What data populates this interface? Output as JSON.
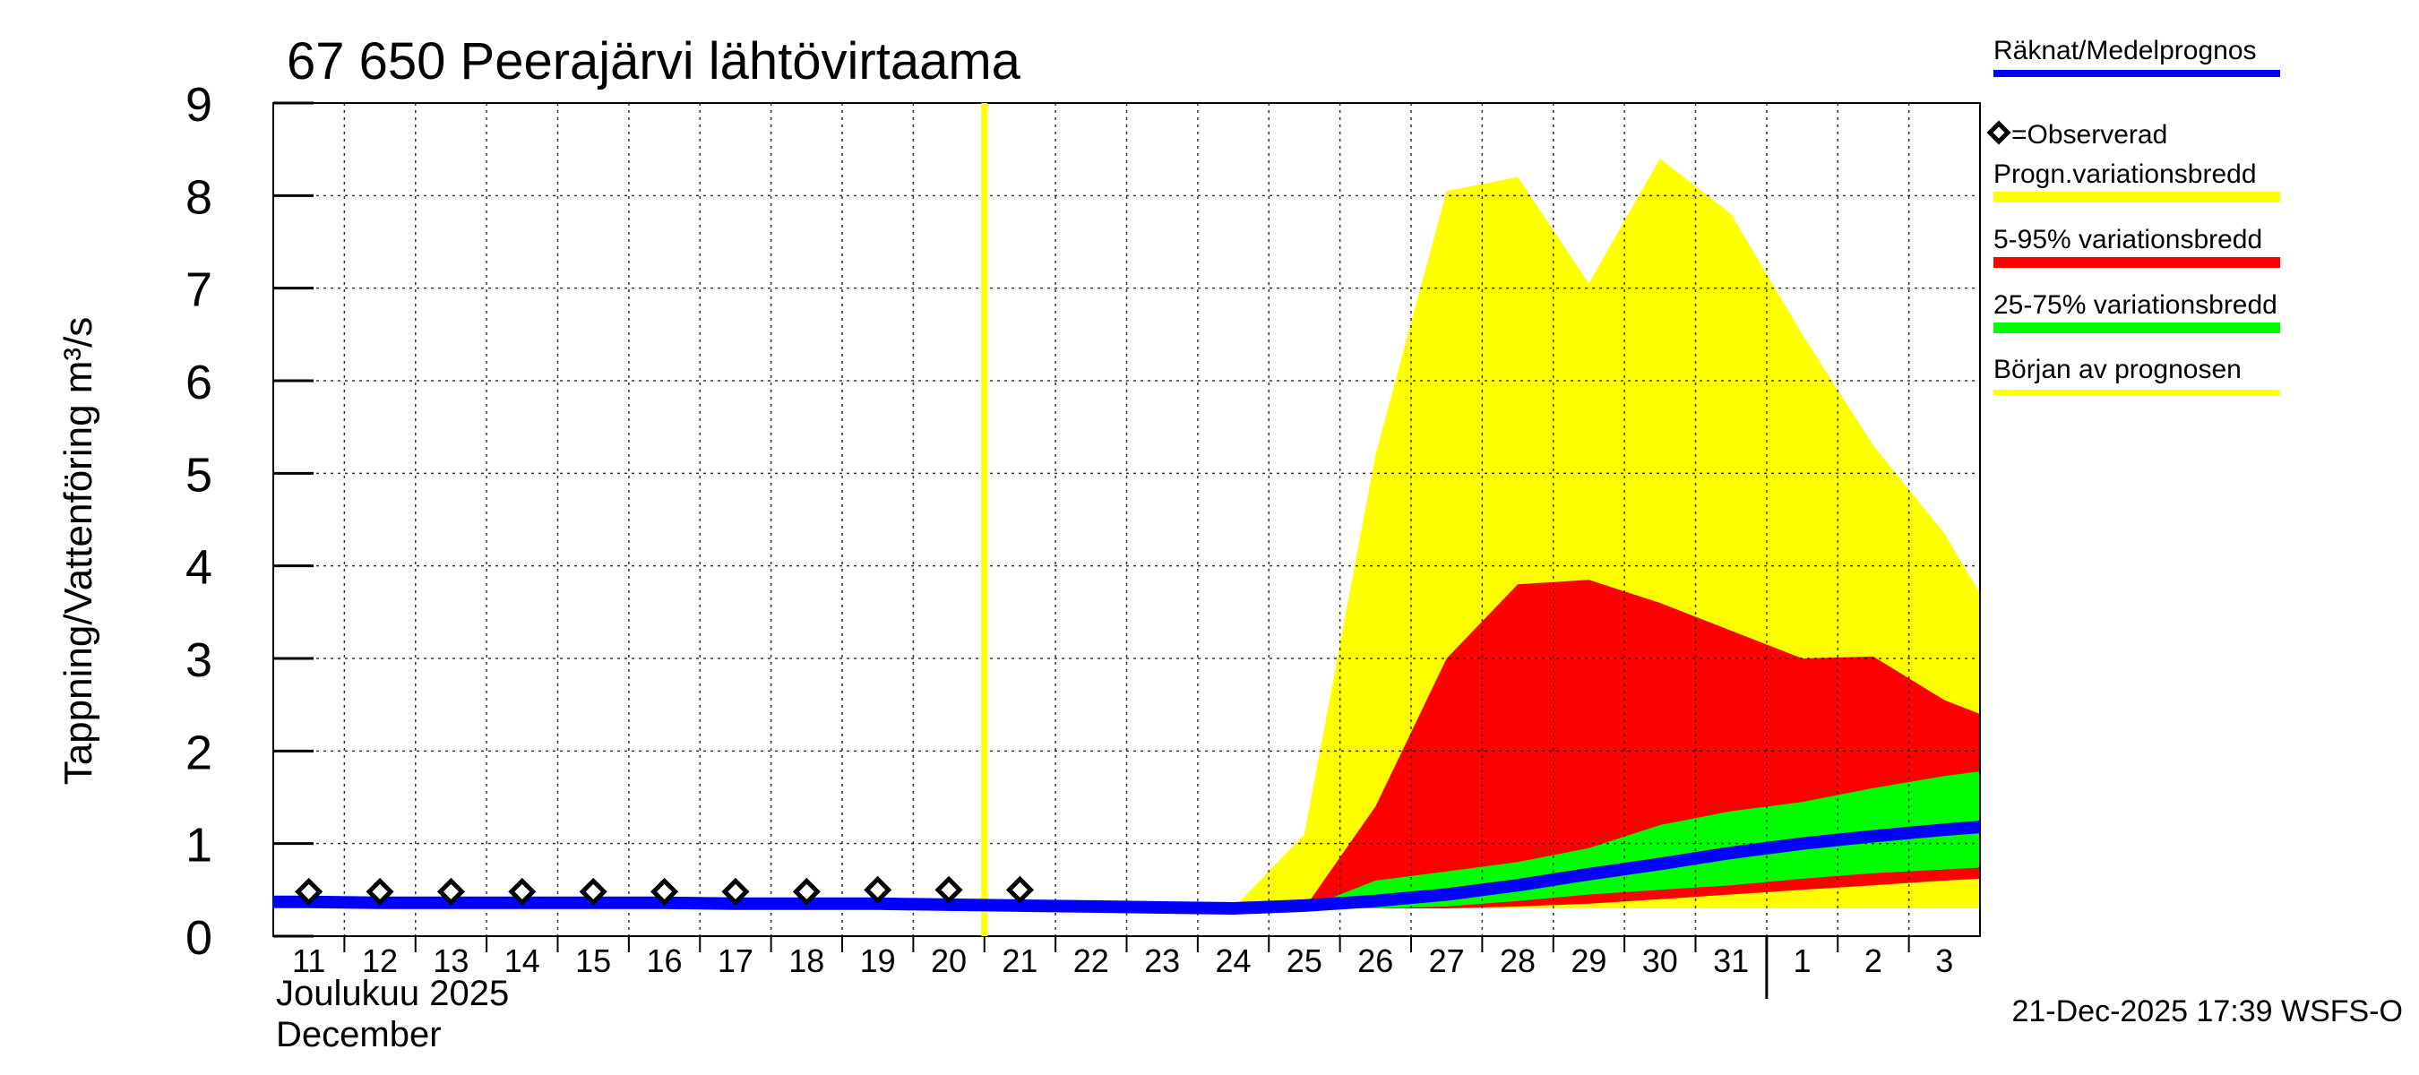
{
  "chart_data": {
    "type": "area",
    "title": "67 650 Peerajärvi lähtövirtaama",
    "ylabel": "Tappning/Vattenföring m³/s",
    "xlabel_line1": "Joulukuu  2025",
    "xlabel_line2": "December",
    "ylim": [
      0,
      9
    ],
    "yticks": [
      "0",
      "1",
      "2",
      "3",
      "4",
      "5",
      "6",
      "7",
      "8",
      "9"
    ],
    "xticks": [
      {
        "label": "11",
        "day": 11
      },
      {
        "label": "12",
        "day": 12
      },
      {
        "label": "13",
        "day": 13
      },
      {
        "label": "14",
        "day": 14
      },
      {
        "label": "15",
        "day": 15
      },
      {
        "label": "16",
        "day": 16
      },
      {
        "label": "17",
        "day": 17
      },
      {
        "label": "18",
        "day": 18
      },
      {
        "label": "19",
        "day": 19
      },
      {
        "label": "20",
        "day": 20
      },
      {
        "label": "21",
        "day": 21
      },
      {
        "label": "22",
        "day": 22
      },
      {
        "label": "23",
        "day": 23
      },
      {
        "label": "24",
        "day": 24
      },
      {
        "label": "25",
        "day": 25
      },
      {
        "label": "26",
        "day": 26
      },
      {
        "label": "27",
        "day": 27
      },
      {
        "label": "28",
        "day": 28
      },
      {
        "label": "29",
        "day": 29
      },
      {
        "label": "30",
        "day": 30
      },
      {
        "label": "31",
        "day": 31
      },
      {
        "label": "1",
        "day": 32
      },
      {
        "label": "2",
        "day": 33
      },
      {
        "label": "3",
        "day": 34
      }
    ],
    "x_domain": [
      10.5,
      34.5
    ],
    "month_boundary_day": 31.5,
    "forecast_start_day": 20.5,
    "grid": true,
    "legend_position": "right",
    "legend": [
      {
        "label": "Räknat/Medelprognos",
        "color": "#0000ff"
      },
      {
        "label": "=Observerad",
        "color": "#000000"
      },
      {
        "label": "Progn.variationsbredd",
        "color": "#ffff00"
      },
      {
        "label": "5-95% variationsbredd",
        "color": "#ff0000"
      },
      {
        "label": "25-75% variationsbredd",
        "color": "#00ff00"
      },
      {
        "label": "Början av prognosen",
        "color": "#ffff00"
      }
    ],
    "series": {
      "prog_range": {
        "x": [
          24,
          25,
          26,
          27,
          28,
          29,
          30,
          31,
          32,
          33,
          34,
          34.5
        ],
        "low": [
          0.3,
          0.3,
          0.3,
          0.3,
          0.3,
          0.3,
          0.3,
          0.3,
          0.3,
          0.3,
          0.3,
          0.3
        ],
        "high": [
          0.3,
          1.1,
          5.2,
          8.05,
          8.2,
          7.05,
          8.4,
          7.8,
          6.5,
          5.3,
          4.35,
          3.7
        ]
      },
      "p5_95": {
        "x": [
          25,
          26,
          27,
          28,
          29,
          30,
          31,
          32,
          33,
          34,
          34.5
        ],
        "low": [
          0.3,
          0.3,
          0.3,
          0.32,
          0.35,
          0.4,
          0.45,
          0.5,
          0.55,
          0.6,
          0.62
        ],
        "high": [
          0.3,
          1.4,
          3.0,
          3.8,
          3.85,
          3.6,
          3.3,
          3.0,
          3.02,
          2.55,
          2.4
        ]
      },
      "p25_75": {
        "x": [
          25,
          26,
          27,
          28,
          29,
          30,
          31,
          32,
          33,
          34,
          34.5
        ],
        "low": [
          0.3,
          0.3,
          0.32,
          0.38,
          0.45,
          0.5,
          0.55,
          0.62,
          0.68,
          0.72,
          0.74
        ],
        "high": [
          0.3,
          0.6,
          0.7,
          0.8,
          0.95,
          1.2,
          1.35,
          1.45,
          1.6,
          1.73,
          1.78
        ]
      },
      "mean": {
        "x": [
          10.5,
          11,
          12,
          13,
          14,
          15,
          16,
          17,
          18,
          19,
          20,
          21,
          22,
          23,
          24,
          25,
          26,
          27,
          28,
          29,
          30,
          31,
          32,
          33,
          34,
          34.5
        ],
        "y": [
          0.37,
          0.37,
          0.36,
          0.36,
          0.36,
          0.36,
          0.36,
          0.35,
          0.35,
          0.35,
          0.34,
          0.33,
          0.32,
          0.31,
          0.3,
          0.33,
          0.38,
          0.45,
          0.55,
          0.67,
          0.78,
          0.9,
          1.0,
          1.08,
          1.15,
          1.18
        ]
      },
      "observed": {
        "x": [
          11,
          12,
          13,
          14,
          15,
          16,
          17,
          18,
          19,
          20,
          21
        ],
        "y": [
          0.48,
          0.48,
          0.48,
          0.48,
          0.48,
          0.48,
          0.48,
          0.48,
          0.5,
          0.5,
          0.5
        ]
      }
    }
  },
  "footer": {
    "timestamp": "21-Dec-2025 17:39 WSFS-O"
  }
}
